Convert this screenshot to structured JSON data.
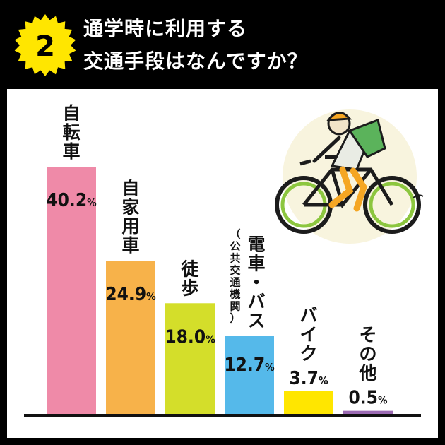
{
  "header": {
    "number": "2",
    "title_line1": "通学時に利用する",
    "title_line2": "交通手段はなんですか？",
    "badge_color": "#ffe600"
  },
  "chart_data": {
    "type": "bar",
    "categories": [
      "自転車",
      "自家用車",
      "徒歩",
      "電車・バス",
      "バイク",
      "その他"
    ],
    "category_notes": [
      "",
      "",
      "",
      "（公共交通機関）",
      "",
      ""
    ],
    "values": [
      40.2,
      24.9,
      18.0,
      12.7,
      3.7,
      0.5
    ],
    "value_labels": [
      "40.2",
      "24.9",
      "18.0",
      "12.7",
      "3.7",
      "0.5"
    ],
    "unit": "%",
    "colors": [
      "#ef8aa8",
      "#f7b24a",
      "#d4de2a",
      "#55b9ea",
      "#ffe600",
      "#9b6ab3"
    ],
    "ylim": [
      0,
      40.2
    ],
    "grid": false,
    "legend": "none"
  },
  "illustration": {
    "icon": "cyclist-icon"
  }
}
